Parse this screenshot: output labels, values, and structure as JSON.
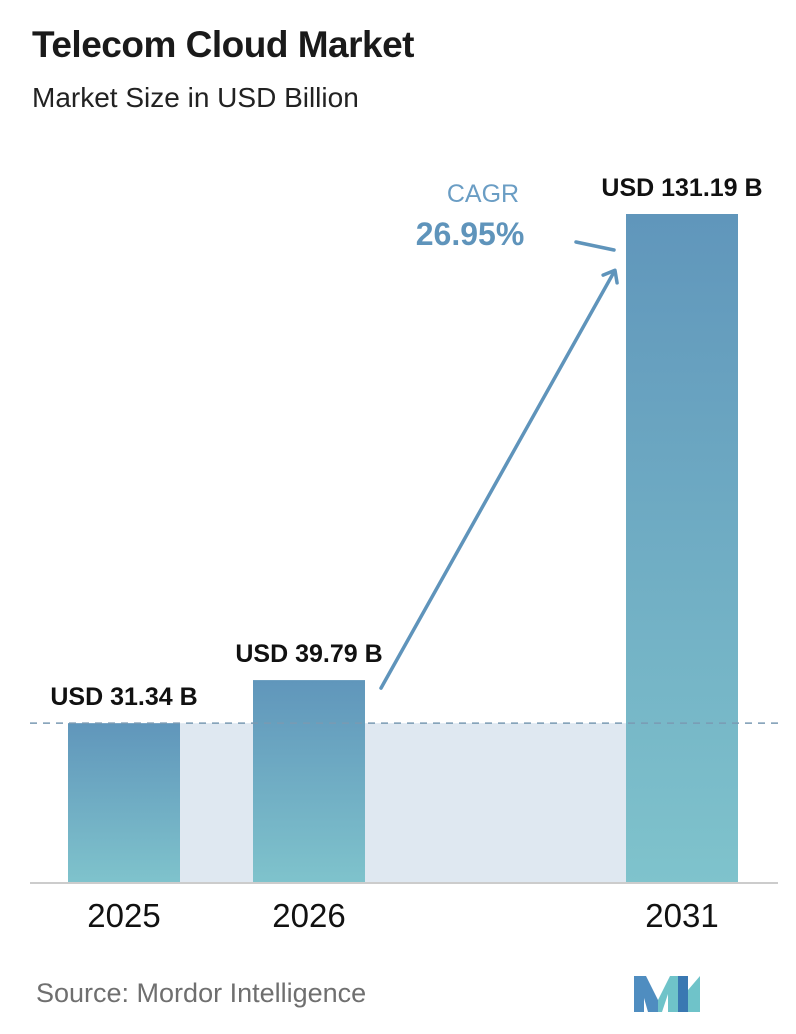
{
  "header": {
    "title": "Telecom Cloud Market",
    "subtitle": "Market Size in USD Billion"
  },
  "chart_data": {
    "type": "bar",
    "categories": [
      "2025",
      "2026",
      "2031"
    ],
    "values": [
      31.34,
      39.79,
      131.19
    ],
    "value_labels": [
      "USD 31.34 B",
      "USD 39.79 B",
      "USD 131.19 B"
    ],
    "ylim": [
      0,
      135
    ],
    "grid": false,
    "legend": "none",
    "annotation": {
      "label": "CAGR",
      "value": "26.95%"
    },
    "colors": {
      "bar_top": "#6096bb",
      "bar_bottom": "#7fc3cc",
      "band": "#dfe8f1",
      "arrow": "#5f94bb",
      "axis": "#cccccc"
    }
  },
  "footer": {
    "source": "Source:  Mordor Intelligence",
    "logo_icon": "mordor-intelligence-logo-icon"
  }
}
